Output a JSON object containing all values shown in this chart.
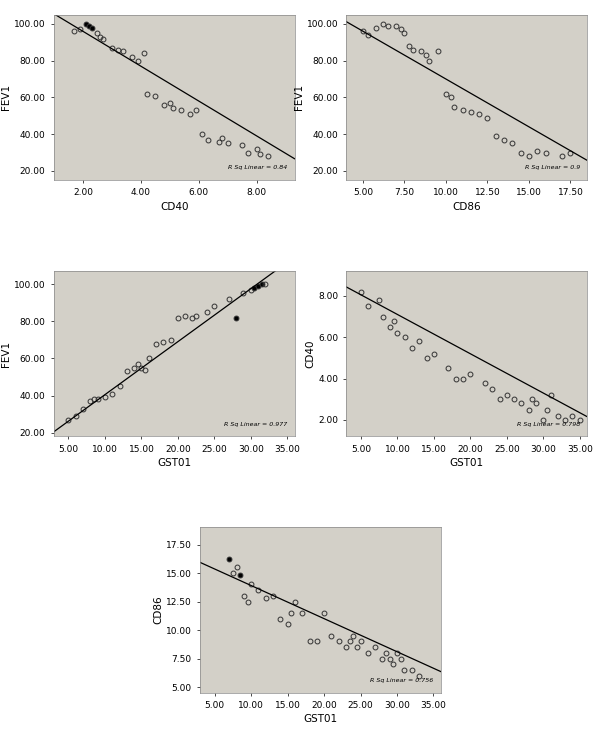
{
  "bg_color": "#d3d0c8",
  "plots": [
    {
      "xlabel": "CD40",
      "ylabel": "FEV1",
      "xlim": [
        1.0,
        9.3
      ],
      "ylim": [
        15,
        105
      ],
      "xticks": [
        2.0,
        4.0,
        6.0,
        8.0
      ],
      "yticks": [
        20.0,
        40.0,
        60.0,
        80.0,
        100.0
      ],
      "annotation": "R Sq Linear = 0.84",
      "x": [
        1.7,
        1.9,
        2.1,
        2.2,
        2.3,
        2.5,
        2.6,
        2.7,
        3.0,
        3.2,
        3.4,
        3.7,
        3.9,
        4.1,
        4.2,
        4.5,
        4.8,
        5.0,
        5.1,
        5.4,
        5.7,
        5.9,
        6.1,
        6.3,
        6.7,
        6.8,
        7.0,
        7.5,
        7.7,
        8.0,
        8.1,
        8.4
      ],
      "y": [
        96,
        97,
        100,
        99,
        98,
        95,
        93,
        92,
        87,
        86,
        85,
        82,
        80,
        84,
        62,
        61,
        56,
        57,
        54,
        53,
        51,
        53,
        40,
        37,
        36,
        38,
        35,
        34,
        30,
        32,
        29,
        28
      ],
      "filled": [
        0,
        0,
        1,
        1,
        1,
        0,
        0,
        0,
        0,
        0,
        0,
        0,
        0,
        0,
        0,
        0,
        0,
        0,
        0,
        0,
        0,
        0,
        0,
        0,
        0,
        0,
        0,
        0,
        0,
        0,
        0,
        0
      ],
      "slope": -9.5,
      "intercept": 115
    },
    {
      "xlabel": "CD86",
      "ylabel": "FEV1",
      "xlim": [
        4.0,
        18.5
      ],
      "ylim": [
        15,
        105
      ],
      "xticks": [
        5.0,
        7.5,
        10.0,
        12.5,
        15.0,
        17.5
      ],
      "yticks": [
        20.0,
        40.0,
        60.0,
        80.0,
        100.0
      ],
      "annotation": "R Sq Linear = 0.9",
      "x": [
        5.0,
        5.3,
        5.8,
        6.2,
        6.5,
        7.0,
        7.3,
        7.5,
        7.8,
        8.0,
        8.5,
        8.8,
        9.0,
        9.5,
        10.0,
        10.3,
        10.5,
        11.0,
        11.5,
        12.0,
        12.5,
        13.0,
        13.5,
        14.0,
        14.5,
        15.0,
        15.5,
        16.0,
        17.0,
        17.5
      ],
      "y": [
        96,
        94,
        98,
        100,
        99,
        99,
        97,
        95,
        88,
        86,
        85,
        83,
        80,
        85,
        62,
        60,
        55,
        53,
        52,
        51,
        49,
        39,
        37,
        35,
        30,
        28,
        31,
        30,
        28,
        30
      ],
      "filled": [
        0,
        0,
        0,
        0,
        0,
        0,
        0,
        0,
        0,
        0,
        0,
        0,
        0,
        0,
        0,
        0,
        0,
        0,
        0,
        0,
        0,
        0,
        0,
        0,
        0,
        0,
        0,
        0,
        0,
        0
      ],
      "slope": -5.2,
      "intercept": 122
    },
    {
      "xlabel": "GST01",
      "ylabel": "FEV1",
      "xlim": [
        3.0,
        36.0
      ],
      "ylim": [
        18,
        107
      ],
      "xticks": [
        5.0,
        10.0,
        15.0,
        20.0,
        25.0,
        30.0,
        35.0
      ],
      "yticks": [
        20.0,
        40.0,
        60.0,
        80.0,
        100.0
      ],
      "annotation": "R Sq Linear = 0.977",
      "x": [
        5.0,
        6.0,
        7.0,
        8.0,
        8.5,
        9.0,
        10.0,
        11.0,
        12.0,
        13.0,
        14.0,
        14.5,
        15.0,
        15.5,
        16.0,
        17.0,
        18.0,
        19.0,
        20.0,
        21.0,
        22.0,
        22.5,
        24.0,
        25.0,
        27.0,
        28.0,
        29.0,
        30.0,
        30.5,
        31.0,
        31.5,
        32.0
      ],
      "y": [
        27,
        29,
        33,
        37,
        38,
        38,
        39,
        41,
        45,
        53,
        55,
        57,
        55,
        54,
        60,
        68,
        69,
        70,
        82,
        83,
        82,
        83,
        85,
        88,
        92,
        82,
        95,
        97,
        98,
        99,
        100,
        100
      ],
      "filled": [
        0,
        0,
        0,
        0,
        0,
        0,
        0,
        0,
        0,
        0,
        0,
        0,
        0,
        0,
        0,
        0,
        0,
        0,
        0,
        0,
        0,
        0,
        0,
        0,
        0,
        1,
        0,
        0,
        1,
        1,
        1,
        0
      ],
      "slope": 2.85,
      "intercept": 12
    },
    {
      "xlabel": "GST01",
      "ylabel": "CD40",
      "xlim": [
        3.0,
        36.0
      ],
      "ylim": [
        1.2,
        9.2
      ],
      "xticks": [
        5.0,
        10.0,
        15.0,
        20.0,
        25.0,
        30.0,
        35.0
      ],
      "yticks": [
        2.0,
        4.0,
        6.0,
        8.0
      ],
      "annotation": "R Sq Linear = 0.798",
      "x": [
        5.0,
        6.0,
        7.5,
        8.0,
        9.0,
        9.5,
        10.0,
        11.0,
        12.0,
        13.0,
        14.0,
        15.0,
        17.0,
        18.0,
        19.0,
        20.0,
        22.0,
        23.0,
        24.0,
        25.0,
        26.0,
        27.0,
        28.0,
        28.5,
        29.0,
        30.0,
        30.5,
        31.0,
        32.0,
        33.0,
        34.0,
        35.0
      ],
      "y": [
        8.2,
        7.5,
        7.8,
        7.0,
        6.5,
        6.8,
        6.2,
        6.0,
        5.5,
        5.8,
        5.0,
        5.2,
        4.5,
        4.0,
        4.0,
        4.2,
        3.8,
        3.5,
        3.0,
        3.2,
        3.0,
        2.8,
        2.5,
        3.0,
        2.8,
        2.0,
        2.5,
        3.2,
        2.2,
        2.0,
        2.2,
        2.0
      ],
      "filled": [
        0,
        0,
        0,
        0,
        0,
        0,
        0,
        0,
        0,
        0,
        0,
        0,
        0,
        0,
        0,
        0,
        0,
        0,
        0,
        0,
        0,
        0,
        0,
        0,
        0,
        0,
        0,
        0,
        0,
        0,
        0,
        0
      ],
      "slope": -0.19,
      "intercept": 9.0
    },
    {
      "xlabel": "GST01",
      "ylabel": "CD86",
      "xlim": [
        3.0,
        36.0
      ],
      "ylim": [
        4.5,
        19.0
      ],
      "xticks": [
        5.0,
        10.0,
        15.0,
        20.0,
        25.0,
        30.0,
        35.0
      ],
      "yticks": [
        5.0,
        7.5,
        10.0,
        12.5,
        15.0,
        17.5
      ],
      "annotation": "R Sq Linear = 0.756",
      "x": [
        7.0,
        7.5,
        8.0,
        8.5,
        9.0,
        9.5,
        10.0,
        11.0,
        12.0,
        13.0,
        14.0,
        15.0,
        15.5,
        16.0,
        17.0,
        18.0,
        19.0,
        20.0,
        21.0,
        22.0,
        23.0,
        23.5,
        24.0,
        24.5,
        25.0,
        26.0,
        27.0,
        28.0,
        28.5,
        29.0,
        29.5,
        30.0,
        30.5,
        31.0,
        32.0,
        33.0
      ],
      "y": [
        16.2,
        15.0,
        15.5,
        14.8,
        13.0,
        12.5,
        14.0,
        13.5,
        12.8,
        13.0,
        11.0,
        10.5,
        11.5,
        12.5,
        11.5,
        9.0,
        9.0,
        11.5,
        9.5,
        9.0,
        8.5,
        9.0,
        9.5,
        8.5,
        9.0,
        8.0,
        8.5,
        7.5,
        8.0,
        7.5,
        7.0,
        8.0,
        7.5,
        6.5,
        6.5,
        6.0
      ],
      "filled": [
        1,
        0,
        0,
        1,
        0,
        0,
        0,
        0,
        0,
        0,
        0,
        0,
        0,
        0,
        0,
        0,
        0,
        0,
        0,
        0,
        0,
        0,
        0,
        0,
        0,
        0,
        0,
        0,
        0,
        0,
        0,
        0,
        0,
        0,
        0,
        0
      ],
      "slope": -0.29,
      "intercept": 16.8
    }
  ]
}
